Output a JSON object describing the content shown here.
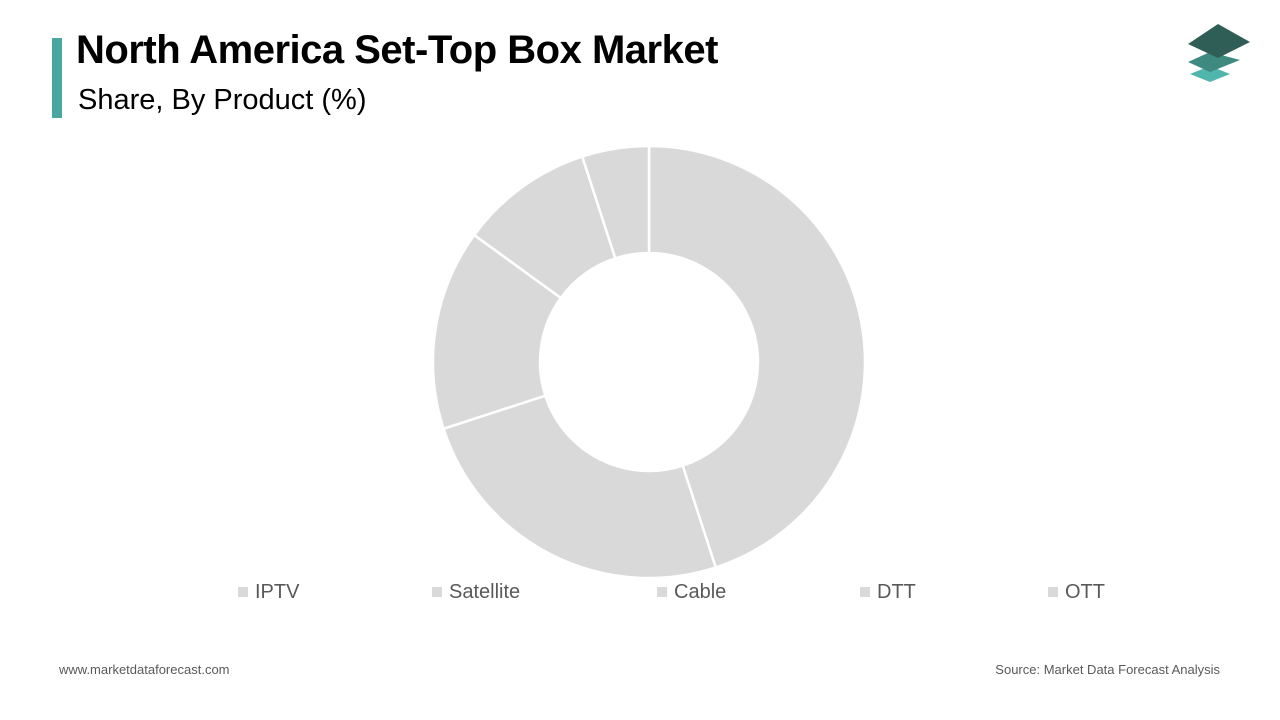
{
  "header": {
    "title": "North America Set-Top Box Market",
    "subtitle": "Share, By Product (%)",
    "accent_color": "#4aa6a0"
  },
  "logo": {
    "icon": "stacked-layers-icon",
    "colors": [
      "#2f5e56",
      "#3f8a80",
      "#4fb5ad"
    ]
  },
  "chart_data": {
    "type": "pie",
    "donut": true,
    "categories": [
      "IPTV",
      "Satellite",
      "Cable",
      "DTT",
      "OTT"
    ],
    "values": [
      45,
      25,
      15,
      10,
      5
    ],
    "slice_color": "#d9d9d9",
    "legend_position": "bottom"
  },
  "footer": {
    "website": "www.marketdataforecast.com",
    "source": "Source: Market Data Forecast Analysis"
  }
}
